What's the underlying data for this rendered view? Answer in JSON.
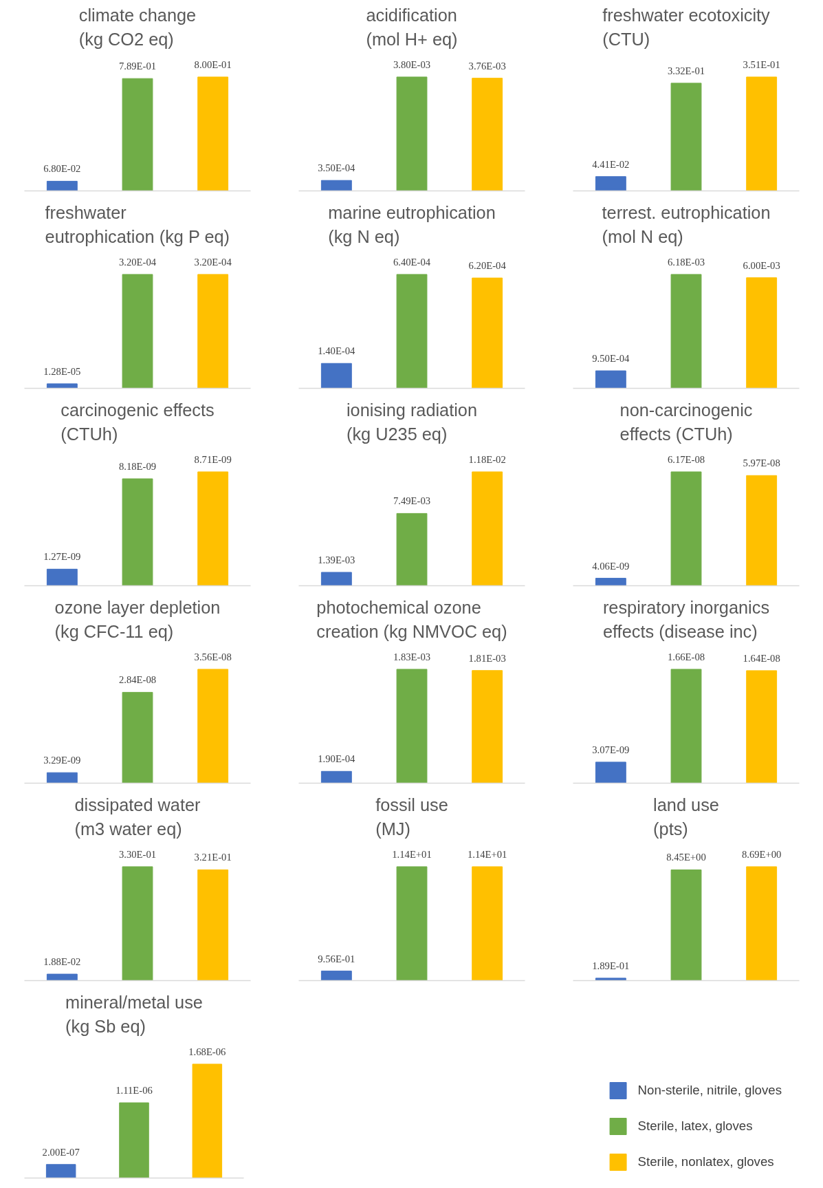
{
  "chart_data": [
    {
      "type": "bar",
      "title": "climate change\n(kg CO2 eq)",
      "categories": [
        null,
        null,
        null
      ],
      "colors": [
        "#4472c4",
        "#70ad47",
        "#ffc000"
      ],
      "values": [
        0.068,
        0.789,
        0.8
      ],
      "value_labels": [
        "6.80E-02",
        "7.89E-01",
        "8.00E-01"
      ]
    },
    {
      "type": "bar",
      "title": "acidification\n(mol H+ eq)",
      "categories": [
        null,
        null,
        null
      ],
      "colors": [
        "#4472c4",
        "#70ad47",
        "#ffc000"
      ],
      "values": [
        0.00035,
        0.0038,
        0.00376
      ],
      "value_labels": [
        "3.50E-04",
        "3.80E-03",
        "3.76E-03"
      ]
    },
    {
      "type": "bar",
      "title": "freshwater ecotoxicity\n(CTU)",
      "categories": [
        null,
        null,
        null
      ],
      "colors": [
        "#4472c4",
        "#70ad47",
        "#ffc000"
      ],
      "values": [
        0.0441,
        0.332,
        0.351
      ],
      "value_labels": [
        "4.41E-02",
        "3.32E-01",
        "3.51E-01"
      ]
    },
    {
      "type": "bar",
      "title": "freshwater\neutrophication (kg P eq)",
      "categories": [
        null,
        null,
        null
      ],
      "colors": [
        "#4472c4",
        "#70ad47",
        "#ffc000"
      ],
      "values": [
        1.28e-05,
        0.00032,
        0.00032
      ],
      "value_labels": [
        "1.28E-05",
        "3.20E-04",
        "3.20E-04"
      ]
    },
    {
      "type": "bar",
      "title": "marine eutrophication\n(kg N eq)",
      "categories": [
        null,
        null,
        null
      ],
      "colors": [
        "#4472c4",
        "#70ad47",
        "#ffc000"
      ],
      "values": [
        0.00014,
        0.00064,
        0.00062
      ],
      "value_labels": [
        "1.40E-04",
        "6.40E-04",
        "6.20E-04"
      ]
    },
    {
      "type": "bar",
      "title": "terrest. eutrophication\n(mol N eq)",
      "categories": [
        null,
        null,
        null
      ],
      "colors": [
        "#4472c4",
        "#70ad47",
        "#ffc000"
      ],
      "values": [
        0.00095,
        0.00618,
        0.006
      ],
      "value_labels": [
        "9.50E-04",
        "6.18E-03",
        "6.00E-03"
      ]
    },
    {
      "type": "bar",
      "title": "carcinogenic effects\n(CTUh)",
      "categories": [
        null,
        null,
        null
      ],
      "colors": [
        "#4472c4",
        "#70ad47",
        "#ffc000"
      ],
      "values": [
        1.27e-09,
        8.18e-09,
        8.71e-09
      ],
      "value_labels": [
        "1.27E-09",
        "8.18E-09",
        "8.71E-09"
      ]
    },
    {
      "type": "bar",
      "title": "ionising radiation\n(kg U235 eq)",
      "categories": [
        null,
        null,
        null
      ],
      "colors": [
        "#4472c4",
        "#70ad47",
        "#ffc000"
      ],
      "values": [
        0.00139,
        0.00749,
        0.0118
      ],
      "value_labels": [
        "1.39E-03",
        "7.49E-03",
        "1.18E-02"
      ]
    },
    {
      "type": "bar",
      "title": "non-carcinogenic\neffects (CTUh)",
      "categories": [
        null,
        null,
        null
      ],
      "colors": [
        "#4472c4",
        "#70ad47",
        "#ffc000"
      ],
      "values": [
        4.06e-09,
        6.17e-08,
        5.97e-08
      ],
      "value_labels": [
        "4.06E-09",
        "6.17E-08",
        "5.97E-08"
      ]
    },
    {
      "type": "bar",
      "title": "ozone layer depletion\n(kg CFC-11 eq)",
      "categories": [
        null,
        null,
        null
      ],
      "colors": [
        "#4472c4",
        "#70ad47",
        "#ffc000"
      ],
      "values": [
        3.29e-09,
        2.84e-08,
        3.56e-08
      ],
      "value_labels": [
        "3.29E-09",
        "2.84E-08",
        "3.56E-08"
      ]
    },
    {
      "type": "bar",
      "title": "photochemical ozone\ncreation (kg NMVOC eq)",
      "categories": [
        null,
        null,
        null
      ],
      "colors": [
        "#4472c4",
        "#70ad47",
        "#ffc000"
      ],
      "values": [
        0.00019,
        0.00183,
        0.00181
      ],
      "value_labels": [
        "1.90E-04",
        "1.83E-03",
        "1.81E-03"
      ]
    },
    {
      "type": "bar",
      "title": "respiratory inorganics\neffects (disease inc)",
      "categories": [
        null,
        null,
        null
      ],
      "colors": [
        "#4472c4",
        "#70ad47",
        "#ffc000"
      ],
      "values": [
        3.07e-09,
        1.66e-08,
        1.64e-08
      ],
      "value_labels": [
        "3.07E-09",
        "1.66E-08",
        "1.64E-08"
      ]
    },
    {
      "type": "bar",
      "title": "dissipated water\n(m3 water eq)",
      "categories": [
        null,
        null,
        null
      ],
      "colors": [
        "#4472c4",
        "#70ad47",
        "#ffc000"
      ],
      "values": [
        0.0188,
        0.33,
        0.321
      ],
      "value_labels": [
        "1.88E-02",
        "3.30E-01",
        "3.21E-01"
      ]
    },
    {
      "type": "bar",
      "title": "fossil use\n(MJ)",
      "categories": [
        null,
        null,
        null
      ],
      "colors": [
        "#4472c4",
        "#70ad47",
        "#ffc000"
      ],
      "values": [
        0.956,
        11.4,
        11.4
      ],
      "value_labels": [
        "9.56E-01",
        "1.14E+01",
        "1.14E+01"
      ]
    },
    {
      "type": "bar",
      "title": "land use\n(pts)",
      "categories": [
        null,
        null,
        null
      ],
      "colors": [
        "#4472c4",
        "#70ad47",
        "#ffc000"
      ],
      "values": [
        0.189,
        8.45,
        8.69
      ],
      "value_labels": [
        "1.89E-01",
        "8.45E+00",
        "8.69E+00"
      ]
    },
    {
      "type": "bar",
      "title": "mineral/metal use\n(kg Sb eq)",
      "categories": [
        null,
        null,
        null
      ],
      "legend": "right",
      "series": [
        {
          "name": "Non-sterile, nitrile, gloves",
          "color": "#4472c4",
          "values": [
            2e-07,
            null,
            null
          ],
          "value_labels": [
            "2.00E-07",
            null,
            null
          ]
        },
        {
          "name": "Sterile, latex, gloves",
          "color": "#70ad47",
          "values": [
            null,
            1.11e-06,
            null
          ],
          "value_labels": [
            null,
            "1.11E-06",
            null
          ]
        },
        {
          "name": "Sterile, nonlatex, gloves",
          "color": "#ffc000",
          "values": [
            null,
            null,
            1.68e-06
          ],
          "value_labels": [
            null,
            null,
            "1.68E-06"
          ]
        }
      ]
    }
  ]
}
